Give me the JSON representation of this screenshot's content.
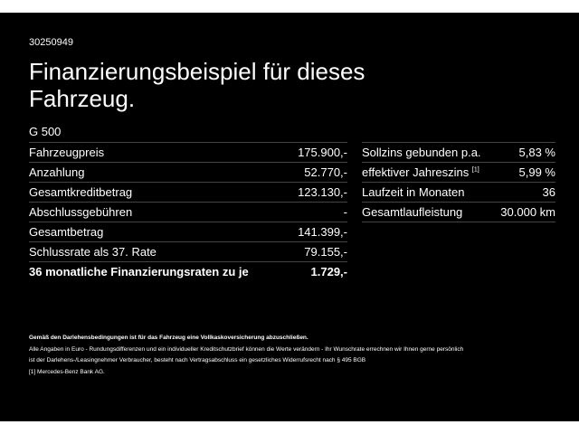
{
  "id": "30250949",
  "title": "Finanzierungsbeispiel für dieses Fahrzeug.",
  "model": "G 500",
  "left_table": {
    "rows": [
      [
        "Fahrzeugpreis",
        "175.900,-"
      ],
      [
        "Anzahlung",
        "52.770,-"
      ],
      [
        "Gesamtkreditbetrag",
        "123.130,-"
      ],
      [
        "Abschlussgebühren",
        "-"
      ],
      [
        "Gesamtbetrag",
        "141.399,-"
      ],
      [
        "Schlussrate als 37. Rate",
        "79.155,-"
      ],
      [
        "36 monatliche Finanzierungsraten zu je",
        "1.729,-"
      ]
    ]
  },
  "right_table": {
    "rows": [
      [
        "Sollzins gebunden p.a.",
        "5,83 %"
      ],
      [
        "effektiver Jahreszins",
        "5,99 %"
      ],
      [
        "Laufzeit in Monaten",
        "36"
      ],
      [
        "Gesamtlaufleistung",
        "30.000 km"
      ]
    ],
    "note_marker": "[1]"
  },
  "footer": {
    "notice": "Gemäß den Darlehensbedingungen ist für das Fahrzeug eine Vollkaskoversicherung abzuschließen.",
    "line1": "Alle Angaben in Euro - Rundungsdifferenzen und ein individueller Kreditschutzbrief können die Werte verändern - Ihr Wunschrate errechnen wir Ihnen gerne persönlich",
    "line2": "ist der Darlehens-/Leasingnehmer Verbraucher, besteht nach Vertragsabschluss ein gesetzliches Widerrufsrecht nach § 495 BGB",
    "footnote_marker": "[1]",
    "footnote": "Mercedes-Benz Bank AG."
  }
}
